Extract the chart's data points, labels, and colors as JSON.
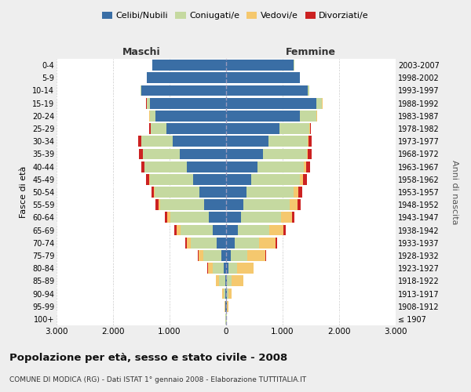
{
  "age_groups": [
    "100+",
    "95-99",
    "90-94",
    "85-89",
    "80-84",
    "75-79",
    "70-74",
    "65-69",
    "60-64",
    "55-59",
    "50-54",
    "45-49",
    "40-44",
    "35-39",
    "30-34",
    "25-29",
    "20-24",
    "15-19",
    "10-14",
    "5-9",
    "0-4"
  ],
  "birth_years": [
    "≤ 1907",
    "1908-1912",
    "1913-1917",
    "1918-1922",
    "1923-1927",
    "1928-1932",
    "1933-1937",
    "1938-1942",
    "1943-1947",
    "1948-1952",
    "1953-1957",
    "1958-1962",
    "1963-1967",
    "1968-1972",
    "1973-1977",
    "1978-1982",
    "1983-1987",
    "1988-1992",
    "1993-1997",
    "1998-2002",
    "2003-2007"
  ],
  "maschi": {
    "celibi": [
      5,
      10,
      15,
      20,
      40,
      80,
      170,
      240,
      310,
      390,
      470,
      580,
      700,
      820,
      950,
      1050,
      1250,
      1350,
      1500,
      1400,
      1300
    ],
    "coniugati": [
      2,
      10,
      30,
      100,
      200,
      320,
      450,
      570,
      680,
      780,
      790,
      770,
      740,
      650,
      550,
      280,
      100,
      50,
      10,
      5,
      5
    ],
    "vedovi": [
      1,
      5,
      20,
      60,
      80,
      90,
      80,
      70,
      50,
      30,
      15,
      10,
      5,
      5,
      5,
      5,
      5,
      5,
      0,
      0,
      0
    ],
    "divorziati": [
      0,
      0,
      0,
      5,
      10,
      15,
      20,
      30,
      40,
      50,
      50,
      55,
      60,
      60,
      50,
      20,
      5,
      5,
      0,
      0,
      0
    ]
  },
  "femmine": {
    "nubili": [
      5,
      10,
      15,
      20,
      40,
      80,
      150,
      210,
      270,
      310,
      360,
      450,
      550,
      650,
      750,
      950,
      1300,
      1600,
      1450,
      1300,
      1200
    ],
    "coniugate": [
      2,
      10,
      25,
      80,
      160,
      290,
      430,
      560,
      700,
      820,
      840,
      850,
      830,
      780,
      700,
      520,
      300,
      100,
      20,
      5,
      5
    ],
    "vedove": [
      2,
      15,
      60,
      200,
      280,
      330,
      300,
      250,
      200,
      130,
      80,
      60,
      40,
      20,
      10,
      10,
      5,
      5,
      0,
      0,
      0
    ],
    "divorziate": [
      0,
      0,
      0,
      5,
      10,
      15,
      20,
      30,
      45,
      60,
      65,
      70,
      70,
      60,
      50,
      20,
      5,
      5,
      0,
      0,
      0
    ]
  },
  "colors": {
    "celibi": "#3a6ea5",
    "coniugati": "#c5d9a0",
    "vedovi": "#f5c86e",
    "divorziati": "#cc2222"
  },
  "xlim": 3000,
  "title": "Popolazione per età, sesso e stato civile - 2008",
  "subtitle": "COMUNE DI MODICA (RG) - Dati ISTAT 1° gennaio 2008 - Elaborazione TUTTITALIA.IT",
  "ylabel_left": "Fasce di età",
  "ylabel_right": "Anni di nascita",
  "xlabel_maschi": "Maschi",
  "xlabel_femmine": "Femmine",
  "xtick_labels": [
    "3.000",
    "2.000",
    "1.000",
    "0",
    "1.000",
    "2.000",
    "3.000"
  ],
  "bg_color": "#eeeeee",
  "plot_bg_color": "#ffffff",
  "legend_labels": [
    "Celibi/Nubili",
    "Coniugati/e",
    "Vedovi/e",
    "Divorziati/e"
  ]
}
